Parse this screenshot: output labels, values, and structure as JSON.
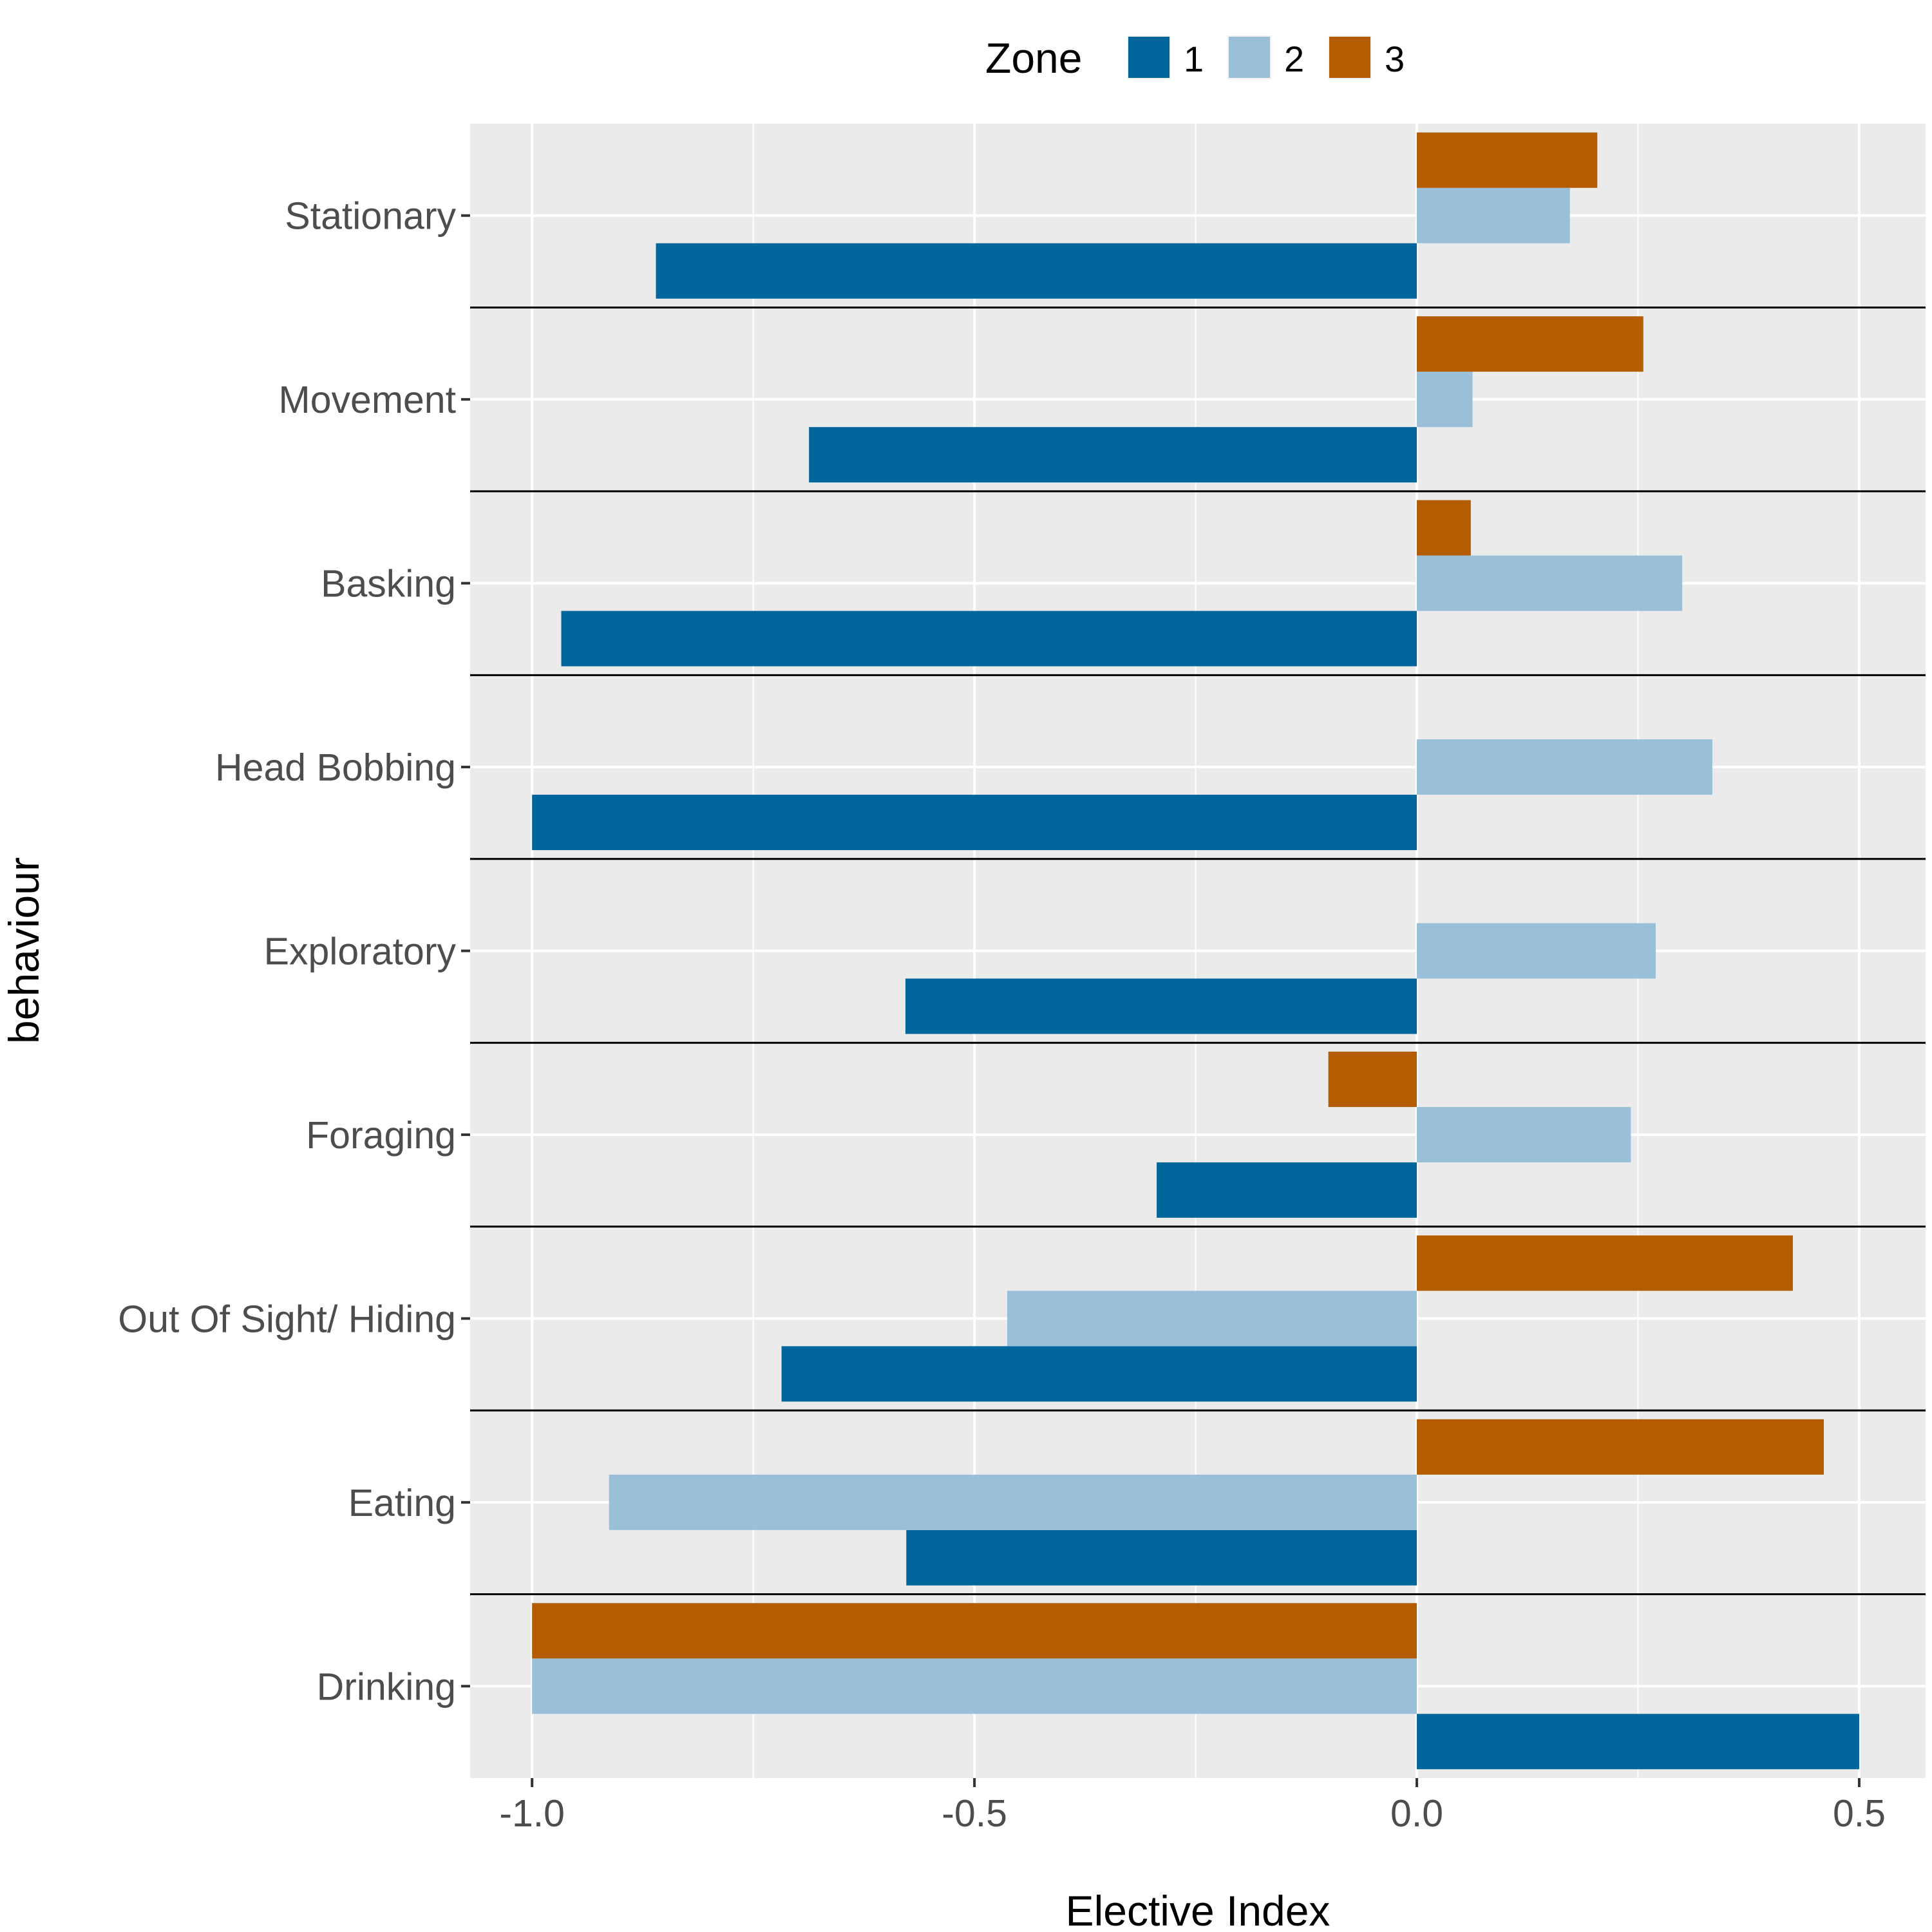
{
  "chart_data": {
    "type": "bar",
    "orientation": "horizontal",
    "xlabel": "Elective Index",
    "ylabel": "behaviour",
    "xlim": [
      -1.07,
      0.575
    ],
    "x_ticks": [
      -1.0,
      -0.5,
      0.0,
      0.5
    ],
    "x_tick_labels": [
      "-1.0",
      "-0.5",
      "0.0",
      "0.5"
    ],
    "grid": true,
    "legend_position": "top",
    "legend_title": "Zone",
    "categories": [
      "Stationary",
      "Movement",
      "Basking",
      "Head Bobbing",
      "Exploratory",
      "Foraging",
      "Out Of Sight/ Hiding",
      "Eating",
      "Drinking"
    ],
    "series": [
      {
        "name": "1",
        "color": "#00669b",
        "values": [
          -0.86,
          -0.687,
          -0.967,
          -1.0,
          -0.578,
          -0.294,
          -0.718,
          -0.577,
          0.5
        ]
      },
      {
        "name": "2",
        "color": "#9ac0d9",
        "values": [
          0.173,
          0.063,
          0.3,
          0.334,
          0.27,
          0.242,
          -0.463,
          -0.913,
          -1.0
        ]
      },
      {
        "name": "3",
        "color": "#b35c00",
        "values": [
          0.204,
          0.256,
          0.061,
          null,
          null,
          -0.1,
          0.425,
          0.46,
          -1.0
        ]
      }
    ]
  }
}
